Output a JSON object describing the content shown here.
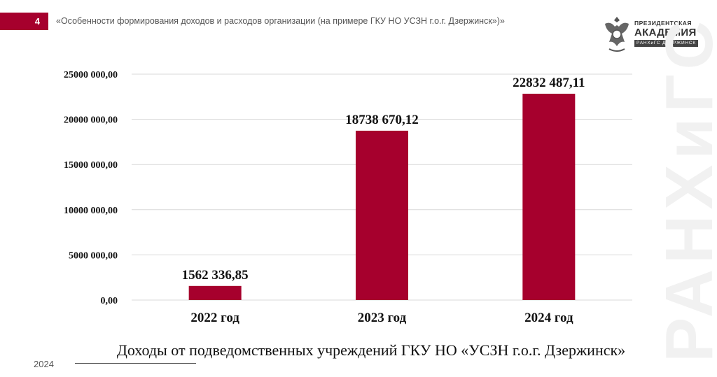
{
  "header": {
    "slide_number": "4",
    "title": "«Особенности формирования доходов и расходов организации (на примере ГКУ НО УСЗН г.о.г. Дзержинск»)»"
  },
  "logo": {
    "line1": "ПРЕЗИДЕНТСКАЯ",
    "line2": "АКАДЕМИЯ",
    "line3": "РАНХиГС  ДЗЕРЖИНСК"
  },
  "watermark": "РАНХиГС",
  "colors": {
    "accent": "#a6002d",
    "grid": "#d9d9d9"
  },
  "chart_data": {
    "type": "bar",
    "categories": [
      "2022 год",
      "2023 год",
      "2024 год"
    ],
    "values": [
      1562336.85,
      18738670.12,
      22832487.11
    ],
    "value_labels": [
      "1562 336,85",
      "18738 670,12",
      "22832 487,11"
    ],
    "ylim": [
      0,
      25000000
    ],
    "yticks": [
      0,
      5000000,
      10000000,
      15000000,
      20000000,
      25000000
    ],
    "ytick_labels": [
      "0,00",
      "5000 000,00",
      "10000 000,00",
      "15000 000,00",
      "20000 000,00",
      "25000 000,00"
    ],
    "grid": true,
    "legend": "none",
    "title": "Доходы от подведомственных учреждений ГКУ НО «УСЗН г.о.г. Дзержинск»"
  },
  "footer": {
    "year": "2024"
  }
}
